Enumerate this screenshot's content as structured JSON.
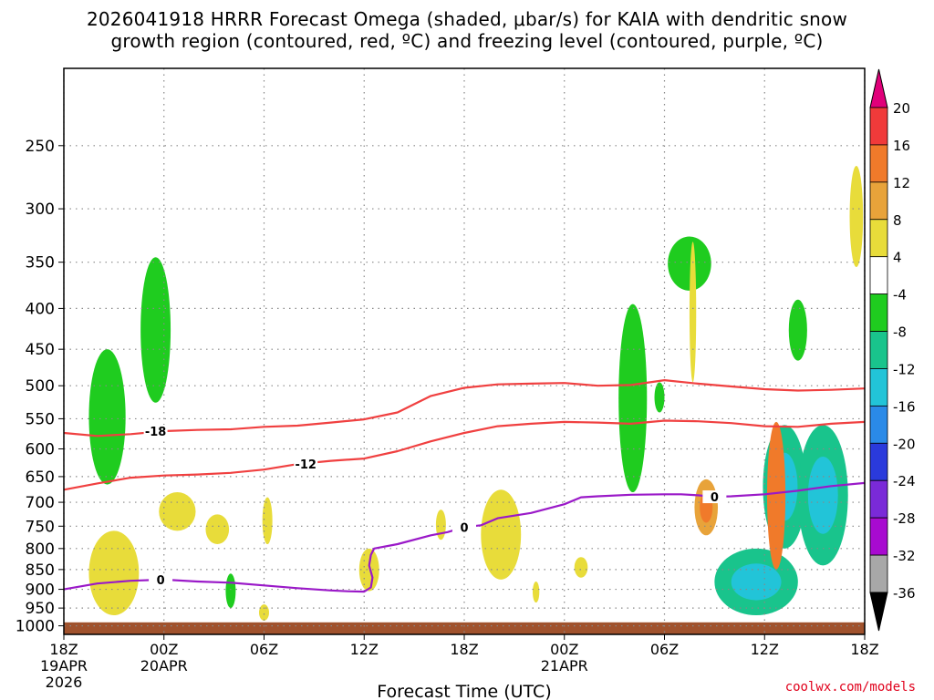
{
  "header": {
    "title_line1": "2026041918 HRRR Forecast Omega (shaded, μbar/s) for KAIA with dendritic snow",
    "title_line2": "growth region (contoured, red, ºC) and freezing level (contoured, purple, ºC)"
  },
  "footer": {
    "credit": "coolwx.com/models"
  },
  "chart_data": {
    "type": "heatmap",
    "title": "2026041918 HRRR Forecast Omega (shaded, μbar/s) for KAIA with dendritic snow growth region (contoured, red, ºC) and freezing level (contoured, purple, ºC)",
    "xlabel": "Forecast Time (UTC)",
    "ylabel": "",
    "x_ticks": [
      {
        "hour": 0,
        "label": "18Z",
        "sub": [
          "19APR",
          "2026"
        ]
      },
      {
        "hour": 6,
        "label": "00Z",
        "sub": [
          "20APR"
        ]
      },
      {
        "hour": 12,
        "label": "06Z",
        "sub": []
      },
      {
        "hour": 18,
        "label": "12Z",
        "sub": []
      },
      {
        "hour": 24,
        "label": "18Z",
        "sub": []
      },
      {
        "hour": 30,
        "label": "00Z",
        "sub": [
          "21APR"
        ]
      },
      {
        "hour": 36,
        "label": "06Z",
        "sub": []
      },
      {
        "hour": 42,
        "label": "12Z",
        "sub": []
      },
      {
        "hour": 48,
        "label": "18Z",
        "sub": []
      }
    ],
    "xlim": [
      0,
      48
    ],
    "y_ticks": [
      250,
      300,
      350,
      400,
      450,
      500,
      550,
      600,
      650,
      700,
      750,
      800,
      850,
      900,
      950,
      1000
    ],
    "ylim_hpa": [
      200,
      1025
    ],
    "y_scale": "log-pressure",
    "grid": true,
    "colorbar": {
      "labels": [
        "20",
        "16",
        "12",
        "8",
        "4",
        "-4",
        "-8",
        "-12",
        "-16",
        "-20",
        "-24",
        "-28",
        "-32",
        "-36"
      ],
      "bins": [
        {
          "lo": 16,
          "hi": 20,
          "color": "#f03a3a"
        },
        {
          "lo": 12,
          "hi": 16,
          "color": "#f07a2a"
        },
        {
          "lo": 8,
          "hi": 12,
          "color": "#e8a33a"
        },
        {
          "lo": 4,
          "hi": 8,
          "color": "#e8dc3a"
        },
        {
          "lo": -4,
          "hi": 4,
          "color": "#ffffff"
        },
        {
          "lo": -8,
          "hi": -4,
          "color": "#1fcc1f"
        },
        {
          "lo": -12,
          "hi": -8,
          "color": "#19c48c"
        },
        {
          "lo": -16,
          "hi": -12,
          "color": "#22c4d8"
        },
        {
          "lo": -20,
          "hi": -16,
          "color": "#2a8ae8"
        },
        {
          "lo": -24,
          "hi": -20,
          "color": "#2a3adc"
        },
        {
          "lo": -28,
          "hi": -24,
          "color": "#7a2ad8"
        },
        {
          "lo": -32,
          "hi": -28,
          "color": "#a80ad0"
        },
        {
          "lo": -36,
          "hi": -32,
          "color": "#a8a8a8"
        }
      ],
      "top_extend_color": "#e0007a",
      "bottom_extend_color": "#000000"
    },
    "series": [
      {
        "name": "-18",
        "color": "#f04040",
        "label_at_hour": 5.5,
        "points": [
          [
            0,
            573
          ],
          [
            2,
            578
          ],
          [
            4,
            575
          ],
          [
            6,
            570
          ],
          [
            8,
            568
          ],
          [
            10,
            567
          ],
          [
            12,
            563
          ],
          [
            14,
            561
          ],
          [
            16,
            556
          ],
          [
            18,
            551
          ],
          [
            20,
            540
          ],
          [
            22,
            515
          ],
          [
            24,
            503
          ],
          [
            26,
            498
          ],
          [
            28,
            497
          ],
          [
            30,
            496
          ],
          [
            32,
            500
          ],
          [
            34,
            499
          ],
          [
            36,
            492
          ],
          [
            38,
            497
          ],
          [
            40,
            501
          ],
          [
            42,
            505
          ],
          [
            44,
            507
          ],
          [
            46,
            506
          ],
          [
            48,
            504
          ]
        ]
      },
      {
        "name": "-12",
        "color": "#f04040",
        "label_at_hour": 14.5,
        "points": [
          [
            0,
            675
          ],
          [
            2,
            663
          ],
          [
            4,
            652
          ],
          [
            6,
            648
          ],
          [
            8,
            646
          ],
          [
            10,
            643
          ],
          [
            12,
            637
          ],
          [
            14,
            627
          ],
          [
            16,
            621
          ],
          [
            18,
            617
          ],
          [
            20,
            604
          ],
          [
            22,
            587
          ],
          [
            24,
            573
          ],
          [
            26,
            562
          ],
          [
            28,
            558
          ],
          [
            30,
            555
          ],
          [
            32,
            556
          ],
          [
            34,
            558
          ],
          [
            36,
            553
          ],
          [
            38,
            554
          ],
          [
            40,
            557
          ],
          [
            42,
            562
          ],
          [
            44,
            563
          ],
          [
            46,
            558
          ],
          [
            48,
            555
          ]
        ]
      },
      {
        "name": "0",
        "color": "#9a19c8",
        "label_at_hour": 5.8,
        "points": [
          [
            0,
            900
          ],
          [
            2,
            885
          ],
          [
            4,
            878
          ],
          [
            6,
            875
          ],
          [
            8,
            880
          ],
          [
            10,
            883
          ],
          [
            12,
            890
          ],
          [
            14,
            897
          ],
          [
            16,
            903
          ],
          [
            17,
            905
          ],
          [
            18,
            906
          ],
          [
            18.4,
            895
          ],
          [
            18.5,
            870
          ],
          [
            18.3,
            840
          ],
          [
            18.4,
            815
          ],
          [
            18.6,
            800
          ],
          [
            20,
            790
          ],
          [
            22,
            770
          ],
          [
            23,
            763
          ],
          [
            24,
            752
          ],
          [
            25,
            748
          ],
          [
            26,
            733
          ],
          [
            28,
            722
          ],
          [
            30,
            704
          ],
          [
            31,
            690
          ],
          [
            32,
            688
          ],
          [
            34,
            685
          ],
          [
            36,
            684
          ],
          [
            37,
            684
          ],
          [
            38,
            686
          ],
          [
            39,
            689
          ],
          [
            40,
            688
          ],
          [
            42,
            684
          ],
          [
            44,
            677
          ],
          [
            46,
            668
          ],
          [
            48,
            662
          ]
        ],
        "extra_labels_at_hour": [
          24,
          39
        ]
      }
    ],
    "omega_cells": [
      {
        "t": 2.6,
        "p1": 450,
        "p2": 665,
        "w": 2.2,
        "v": -6
      },
      {
        "t": 5.5,
        "p1": 345,
        "p2": 525,
        "w": 1.8,
        "v": -6
      },
      {
        "t": 34.1,
        "p1": 395,
        "p2": 680,
        "w": 1.7,
        "v": -6
      },
      {
        "t": 37.5,
        "p1": 325,
        "p2": 380,
        "w": 2.6,
        "v": -6
      },
      {
        "t": 35.7,
        "p1": 540,
        "p2": 495,
        "w": 0.6,
        "v": -6
      },
      {
        "t": 44.0,
        "p1": 390,
        "p2": 465,
        "w": 1.1,
        "v": -6
      },
      {
        "t": 41.5,
        "p1": 800,
        "p2": 970,
        "w": 5.0,
        "v": -10
      },
      {
        "t": 43.2,
        "p1": 560,
        "p2": 800,
        "w": 2.6,
        "v": -10
      },
      {
        "t": 45.5,
        "p1": 560,
        "p2": 840,
        "w": 3.0,
        "v": -10
      },
      {
        "t": 10.0,
        "p1": 950,
        "p2": 860,
        "w": 0.6,
        "v": -6
      },
      {
        "t": 3.0,
        "p1": 760,
        "p2": 970,
        "w": 3.0,
        "v": 6
      },
      {
        "t": 6.8,
        "p1": 680,
        "p2": 760,
        "w": 2.2,
        "v": 6
      },
      {
        "t": 9.2,
        "p1": 725,
        "p2": 790,
        "w": 1.4,
        "v": 6
      },
      {
        "t": 12.2,
        "p1": 690,
        "p2": 790,
        "w": 0.6,
        "v": 6
      },
      {
        "t": 12.0,
        "p1": 940,
        "p2": 985,
        "w": 0.6,
        "v": 6
      },
      {
        "t": 18.3,
        "p1": 800,
        "p2": 905,
        "w": 1.2,
        "v": 6
      },
      {
        "t": 22.6,
        "p1": 715,
        "p2": 780,
        "w": 0.6,
        "v": 6
      },
      {
        "t": 26.2,
        "p1": 675,
        "p2": 875,
        "w": 2.4,
        "v": 6
      },
      {
        "t": 31.0,
        "p1": 820,
        "p2": 870,
        "w": 0.8,
        "v": 6
      },
      {
        "t": 28.3,
        "p1": 880,
        "p2": 935,
        "w": 0.4,
        "v": 6
      },
      {
        "t": 37.7,
        "p1": 330,
        "p2": 495,
        "w": 0.4,
        "v": 6
      },
      {
        "t": 38.5,
        "p1": 655,
        "p2": 770,
        "w": 1.4,
        "v": 10
      },
      {
        "t": 42.7,
        "p1": 555,
        "p2": 850,
        "w": 1.1,
        "v": 12
      },
      {
        "t": 47.5,
        "p1": 265,
        "p2": 355,
        "w": 0.8,
        "v": 6
      }
    ]
  }
}
